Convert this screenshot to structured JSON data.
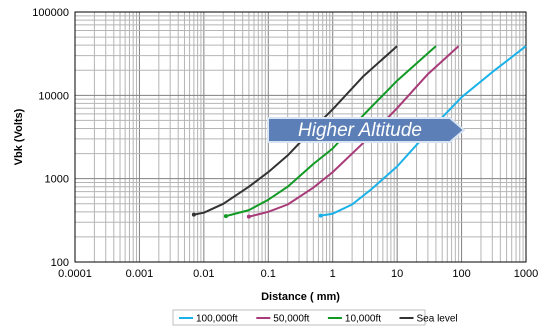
{
  "chart_data": {
    "type": "line",
    "title": "",
    "xlabel": "Distance ( mm)",
    "ylabel": "Vbk (Volts)",
    "xscale": "log",
    "yscale": "log",
    "xlim": [
      0.0001,
      1000
    ],
    "ylim": [
      100,
      100000
    ],
    "grid": true,
    "x_ticks": [
      "0.0001",
      "0.001",
      "0.01",
      "0.1",
      "1",
      "10",
      "100",
      "1000"
    ],
    "y_ticks": [
      "100",
      "1000",
      "10000",
      "100000"
    ],
    "legend_position": "bottom",
    "annotation": "Higher Altitude",
    "series": [
      {
        "name": "100,000ft",
        "color": "#1ab2e8",
        "points": [
          [
            0.65,
            360
          ],
          [
            1.0,
            380
          ],
          [
            2.0,
            490
          ],
          [
            4.0,
            750
          ],
          [
            10,
            1400
          ],
          [
            30,
            3600
          ],
          [
            100,
            9500
          ],
          [
            300,
            19000
          ],
          [
            1000,
            39000
          ]
        ]
      },
      {
        "name": "50,000ft",
        "color": "#a83b78",
        "points": [
          [
            0.05,
            350
          ],
          [
            0.1,
            400
          ],
          [
            0.2,
            490
          ],
          [
            0.5,
            780
          ],
          [
            1.0,
            1200
          ],
          [
            3,
            2700
          ],
          [
            10,
            7000
          ],
          [
            30,
            18000
          ],
          [
            90,
            39000
          ]
        ]
      },
      {
        "name": "10,000ft",
        "color": "#119a24",
        "points": [
          [
            0.022,
            355
          ],
          [
            0.05,
            420
          ],
          [
            0.1,
            560
          ],
          [
            0.2,
            800
          ],
          [
            0.5,
            1500
          ],
          [
            1.0,
            2300
          ],
          [
            3,
            5800
          ],
          [
            10,
            15000
          ],
          [
            40,
            39000
          ]
        ]
      },
      {
        "name": "Sea level",
        "color": "#333333",
        "points": [
          [
            0.007,
            370
          ],
          [
            0.01,
            390
          ],
          [
            0.02,
            500
          ],
          [
            0.05,
            800
          ],
          [
            0.1,
            1200
          ],
          [
            0.2,
            1900
          ],
          [
            0.5,
            4000
          ],
          [
            1.0,
            6800
          ],
          [
            3,
            17000
          ],
          [
            10,
            39000
          ]
        ]
      }
    ]
  }
}
